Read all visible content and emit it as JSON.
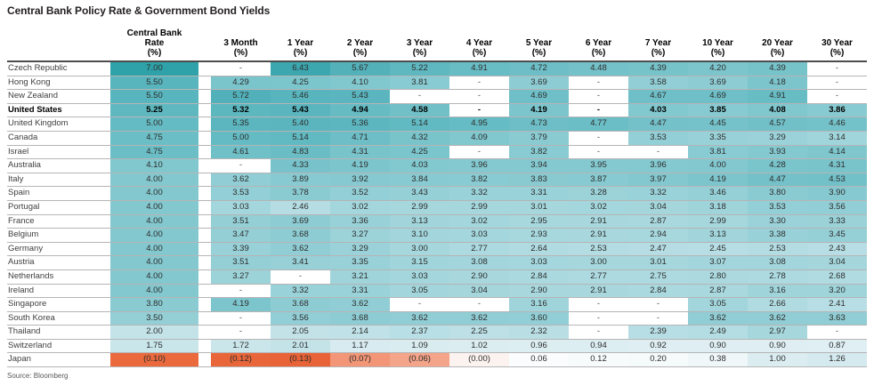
{
  "source": "Source: Bloomberg",
  "heatmap": {
    "missing_bg": "#FFFFFF",
    "positive_stops": [
      [
        0.0,
        "#FCFDFE"
      ],
      [
        0.3,
        "#F2F8FA"
      ],
      [
        0.7,
        "#E5F1F5"
      ],
      [
        1.0,
        "#DBEDF1"
      ],
      [
        1.5,
        "#CFE8ED"
      ],
      [
        2.0,
        "#C3E3E9"
      ],
      [
        2.5,
        "#B4DDE3"
      ],
      [
        3.0,
        "#A5D7DD"
      ],
      [
        3.5,
        "#94CFD6"
      ],
      [
        4.0,
        "#83C8CF"
      ],
      [
        4.5,
        "#73C1C9"
      ],
      [
        5.0,
        "#65BBC3"
      ],
      [
        5.5,
        "#58B4BD"
      ],
      [
        6.0,
        "#48ACB5"
      ],
      [
        6.5,
        "#3AA6AE"
      ],
      [
        7.0,
        "#2EA2A8"
      ]
    ],
    "negative_stops": [
      [
        0.0,
        "#FCF3F0"
      ],
      [
        0.03,
        "#F8D2C4"
      ],
      [
        0.05,
        "#F5B29B"
      ],
      [
        0.07,
        "#F29677"
      ],
      [
        0.09,
        "#EE7C53"
      ],
      [
        0.1,
        "#EA6A3D"
      ],
      [
        0.15,
        "#E65F33"
      ]
    ]
  },
  "chart_data": {
    "type": "heatmap",
    "title": "Central Bank Policy Rate & Government Bond Yields",
    "missing_label": "-",
    "value_unit": "%",
    "columns": [
      {
        "label": "Central Bank Rate (%)",
        "lines": [
          "Central Bank",
          "Rate",
          "(%)"
        ]
      },
      {
        "label": "3 Month (%)",
        "lines": [
          "3 Month",
          "(%)"
        ]
      },
      {
        "label": "1 Year (%)",
        "lines": [
          "1 Year",
          "(%)"
        ]
      },
      {
        "label": "2 Year (%)",
        "lines": [
          "2 Year",
          "(%)"
        ]
      },
      {
        "label": "3 Year (%)",
        "lines": [
          "3 Year",
          "(%)"
        ]
      },
      {
        "label": "4 Year (%)",
        "lines": [
          "4 Year",
          "(%)"
        ]
      },
      {
        "label": "5 Year (%)",
        "lines": [
          "5 Year",
          "(%)"
        ]
      },
      {
        "label": "6 Year (%)",
        "lines": [
          "6 Year",
          "(%)"
        ]
      },
      {
        "label": "7 Year (%)",
        "lines": [
          "7 Year",
          "(%)"
        ]
      },
      {
        "label": "10 Year (%)",
        "lines": [
          "10 Year",
          "(%)"
        ]
      },
      {
        "label": "20 Year (%)",
        "lines": [
          "20 Year",
          "(%)"
        ]
      },
      {
        "label": "30 Year (%)",
        "lines": [
          "30 Year",
          "(%)"
        ]
      }
    ],
    "rows": [
      {
        "name": "Czech Republic",
        "bold": false,
        "values": [
          7.0,
          null,
          6.43,
          5.67,
          5.22,
          4.91,
          4.72,
          4.48,
          4.39,
          4.2,
          4.39,
          null
        ]
      },
      {
        "name": "Hong Kong",
        "bold": false,
        "values": [
          5.5,
          4.29,
          4.25,
          4.1,
          3.81,
          null,
          3.69,
          null,
          3.58,
          3.69,
          4.18,
          null
        ]
      },
      {
        "name": "New Zealand",
        "bold": false,
        "values": [
          5.5,
          5.72,
          5.46,
          5.43,
          null,
          null,
          4.69,
          null,
          4.67,
          4.69,
          4.91,
          null
        ]
      },
      {
        "name": "United States",
        "bold": true,
        "values": [
          5.25,
          5.32,
          5.43,
          4.94,
          4.58,
          null,
          4.19,
          null,
          4.03,
          3.85,
          4.08,
          3.86
        ]
      },
      {
        "name": "United Kingdom",
        "bold": false,
        "values": [
          5.0,
          5.35,
          5.4,
          5.36,
          5.14,
          4.95,
          4.73,
          4.77,
          4.47,
          4.45,
          4.57,
          4.46
        ]
      },
      {
        "name": "Canada",
        "bold": false,
        "values": [
          4.75,
          5.0,
          5.14,
          4.71,
          4.32,
          4.09,
          3.79,
          null,
          3.53,
          3.35,
          3.29,
          3.14
        ]
      },
      {
        "name": "Israel",
        "bold": false,
        "values": [
          4.75,
          4.61,
          4.83,
          4.31,
          4.25,
          null,
          3.82,
          null,
          null,
          3.81,
          3.93,
          4.14
        ]
      },
      {
        "name": "Australia",
        "bold": false,
        "values": [
          4.1,
          null,
          4.33,
          4.19,
          4.03,
          3.96,
          3.94,
          3.95,
          3.96,
          4.0,
          4.28,
          4.31
        ]
      },
      {
        "name": "Italy",
        "bold": false,
        "values": [
          4.0,
          3.62,
          3.89,
          3.92,
          3.84,
          3.82,
          3.83,
          3.87,
          3.97,
          4.19,
          4.47,
          4.53
        ]
      },
      {
        "name": "Spain",
        "bold": false,
        "values": [
          4.0,
          3.53,
          3.78,
          3.52,
          3.43,
          3.32,
          3.31,
          3.28,
          3.32,
          3.46,
          3.8,
          3.9
        ]
      },
      {
        "name": "Portugal",
        "bold": false,
        "values": [
          4.0,
          3.03,
          2.46,
          3.02,
          2.99,
          2.99,
          3.01,
          3.02,
          3.04,
          3.18,
          3.53,
          3.56
        ]
      },
      {
        "name": "France",
        "bold": false,
        "values": [
          4.0,
          3.51,
          3.69,
          3.36,
          3.13,
          3.02,
          2.95,
          2.91,
          2.87,
          2.99,
          3.3,
          3.33
        ]
      },
      {
        "name": "Belgium",
        "bold": false,
        "values": [
          4.0,
          3.47,
          3.68,
          3.27,
          3.1,
          3.03,
          2.93,
          2.91,
          2.94,
          3.13,
          3.38,
          3.45
        ]
      },
      {
        "name": "Germany",
        "bold": false,
        "values": [
          4.0,
          3.39,
          3.62,
          3.29,
          3.0,
          2.77,
          2.64,
          2.53,
          2.47,
          2.45,
          2.53,
          2.43
        ]
      },
      {
        "name": "Austria",
        "bold": false,
        "values": [
          4.0,
          3.51,
          3.41,
          3.35,
          3.15,
          3.08,
          3.03,
          3.0,
          3.01,
          3.07,
          3.08,
          3.04
        ]
      },
      {
        "name": "Netherlands",
        "bold": false,
        "values": [
          4.0,
          3.27,
          null,
          3.21,
          3.03,
          2.9,
          2.84,
          2.77,
          2.75,
          2.8,
          2.78,
          2.68
        ]
      },
      {
        "name": "Ireland",
        "bold": false,
        "values": [
          4.0,
          null,
          3.32,
          3.31,
          3.05,
          3.04,
          2.9,
          2.91,
          2.84,
          2.87,
          3.16,
          3.2
        ]
      },
      {
        "name": "Singapore",
        "bold": false,
        "values": [
          3.8,
          4.19,
          3.68,
          3.62,
          null,
          null,
          3.16,
          null,
          null,
          3.05,
          2.66,
          2.41
        ]
      },
      {
        "name": "South Korea",
        "bold": false,
        "values": [
          3.5,
          null,
          3.56,
          3.68,
          3.62,
          3.62,
          3.6,
          null,
          null,
          3.62,
          3.62,
          3.63
        ]
      },
      {
        "name": "Thailand",
        "bold": false,
        "values": [
          2.0,
          null,
          2.05,
          2.14,
          2.37,
          2.25,
          2.32,
          null,
          2.39,
          2.49,
          2.97,
          null
        ]
      },
      {
        "name": "Switzerland",
        "bold": false,
        "values": [
          1.75,
          1.72,
          2.01,
          1.17,
          1.09,
          1.02,
          0.96,
          0.94,
          0.92,
          0.9,
          0.9,
          0.87
        ]
      },
      {
        "name": "Japan",
        "bold": false,
        "values": [
          -0.1,
          -0.12,
          -0.13,
          -0.07,
          -0.06,
          -0.0,
          0.06,
          0.12,
          0.2,
          0.38,
          1.0,
          1.26
        ]
      }
    ]
  }
}
